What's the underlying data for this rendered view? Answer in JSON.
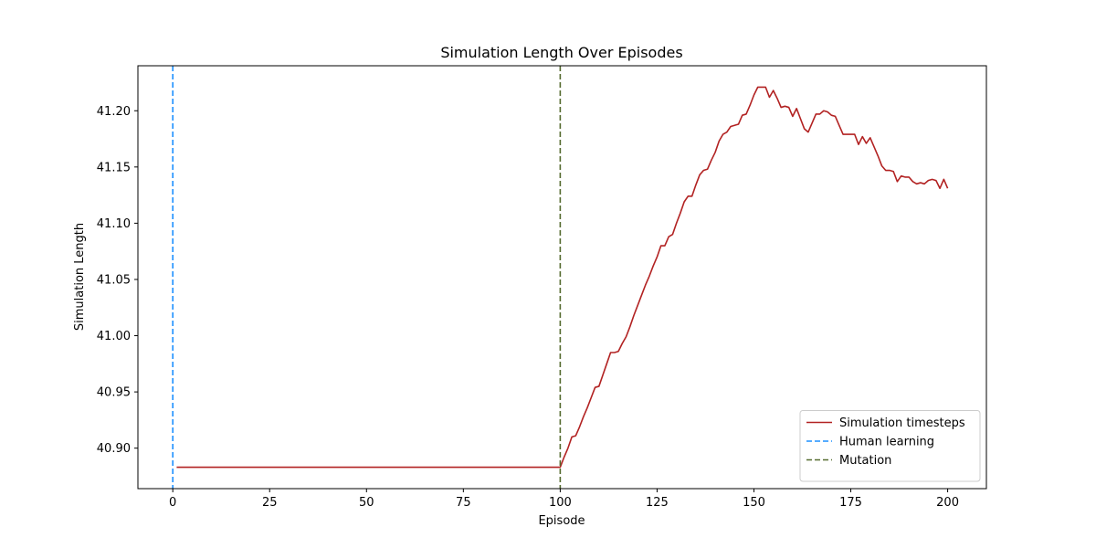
{
  "chart_data": {
    "type": "line",
    "title": "Simulation Length Over Episodes",
    "xlabel": "Episode",
    "ylabel": "Simulation Length",
    "xlim": [
      -9,
      210
    ],
    "ylim": [
      40.864,
      41.24
    ],
    "xticks": [
      0,
      25,
      50,
      75,
      100,
      125,
      150,
      175,
      200
    ],
    "yticks": [
      40.9,
      40.95,
      41.0,
      41.05,
      41.1,
      41.15,
      41.2
    ],
    "ytick_decimals": 2,
    "grid": false,
    "legend_position": "lower-right",
    "series": [
      {
        "name": "Simulation timesteps",
        "style": "solid",
        "color": "#b22222",
        "x": [
          1,
          100,
          101,
          102,
          103,
          104,
          105,
          106,
          107,
          108,
          109,
          110,
          111,
          112,
          113,
          114,
          115,
          116,
          117,
          118,
          119,
          120,
          121,
          122,
          123,
          124,
          125,
          126,
          127,
          128,
          129,
          130,
          131,
          132,
          133,
          134,
          135,
          136,
          137,
          138,
          139,
          140,
          141,
          142,
          143,
          144,
          145,
          146,
          147,
          148,
          149,
          150,
          151,
          152,
          153,
          154,
          155,
          156,
          157,
          158,
          159,
          160,
          161,
          162,
          163,
          164,
          165,
          166,
          167,
          168,
          169,
          170,
          171,
          172,
          173,
          174,
          175,
          176,
          177,
          178,
          179,
          180,
          181,
          182,
          183,
          184,
          185,
          186,
          187,
          188,
          189,
          190,
          191,
          192,
          193,
          194,
          195,
          196,
          197,
          198,
          199,
          200
        ],
        "values": [
          40.883,
          40.883,
          40.892,
          40.9,
          40.91,
          40.911,
          40.919,
          40.928,
          40.936,
          40.945,
          40.954,
          40.955,
          40.965,
          40.975,
          40.985,
          40.985,
          40.986,
          40.993,
          40.999,
          41.008,
          41.018,
          41.027,
          41.036,
          41.045,
          41.053,
          41.062,
          41.07,
          41.08,
          41.08,
          41.088,
          41.09,
          41.1,
          41.109,
          41.119,
          41.124,
          41.124,
          41.134,
          41.143,
          41.147,
          41.148,
          41.156,
          41.163,
          41.173,
          41.179,
          41.181,
          41.186,
          41.187,
          41.188,
          41.196,
          41.197,
          41.205,
          41.214,
          41.221,
          41.221,
          41.221,
          41.212,
          41.218,
          41.211,
          41.203,
          41.204,
          41.203,
          41.195,
          41.202,
          41.193,
          41.184,
          41.181,
          41.189,
          41.197,
          41.197,
          41.2,
          41.199,
          41.196,
          41.195,
          41.187,
          41.179,
          41.179,
          41.179,
          41.179,
          41.17,
          41.177,
          41.171,
          41.176,
          41.168,
          41.16,
          41.151,
          41.147,
          41.147,
          41.146,
          41.137,
          41.142,
          41.141,
          41.141,
          41.137,
          41.135,
          41.136,
          41.135,
          41.138,
          41.139,
          41.138,
          41.131,
          41.139,
          41.131
        ]
      },
      {
        "name": "Human learning",
        "style": "dashed",
        "color": "#1e90ff",
        "vline_x": 0
      },
      {
        "name": "Mutation",
        "style": "dashed",
        "color": "#556b2f",
        "vline_x": 100
      }
    ]
  }
}
